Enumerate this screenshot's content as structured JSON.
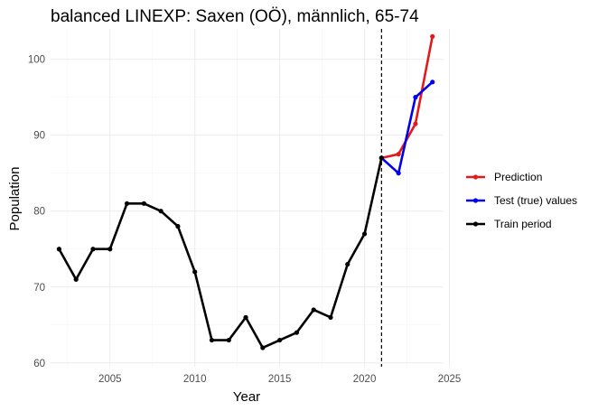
{
  "chart_data": {
    "type": "line",
    "title": "balanced LINEXP: Saxen (OÖ), männlich, 65-74",
    "xlabel": "Year",
    "ylabel": "Population",
    "xlim": [
      2001.5,
      2024.6
    ],
    "ylim": [
      59.5,
      104
    ],
    "x_ticks": [
      2005,
      2010,
      2015,
      2020,
      2025
    ],
    "y_ticks": [
      60,
      70,
      80,
      90,
      100
    ],
    "grid": true,
    "legend_position": "right",
    "vline": {
      "x": 2021,
      "style": "dashed"
    },
    "series": [
      {
        "name": "Prediction",
        "color": "#e31a1c",
        "x": [
          2021,
          2022,
          2023,
          2024
        ],
        "y": [
          87,
          87.5,
          91.5,
          103
        ]
      },
      {
        "name": "Test (true) values",
        "color": "#0000ee",
        "x": [
          2021,
          2022,
          2023,
          2024
        ],
        "y": [
          87,
          85,
          95,
          97
        ]
      },
      {
        "name": "Train period",
        "color": "#000000",
        "x": [
          2002,
          2003,
          2004,
          2005,
          2006,
          2007,
          2008,
          2009,
          2010,
          2011,
          2012,
          2013,
          2014,
          2015,
          2016,
          2017,
          2018,
          2019,
          2020,
          2021
        ],
        "y": [
          75,
          71,
          75,
          75,
          81,
          81,
          80,
          78,
          72,
          63,
          63,
          66,
          62,
          63,
          64,
          67,
          66,
          73,
          77,
          87
        ]
      }
    ]
  }
}
